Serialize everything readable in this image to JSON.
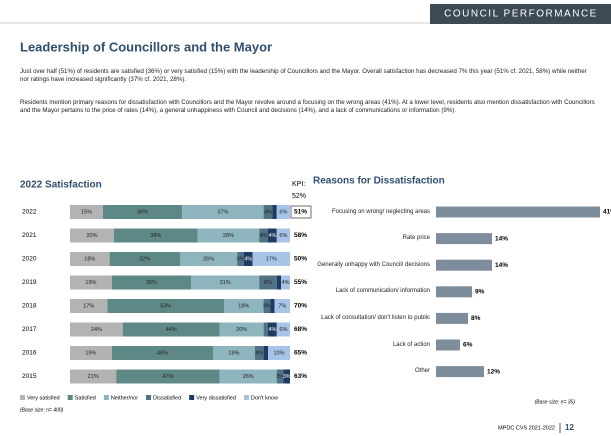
{
  "header": {
    "section": "COUNCIL PERFORMANCE",
    "title": "Leadership of Councillors and the Mayor"
  },
  "paragraphs": [
    "Just over half (51%) of residents are satisfied (36%) or very satisfied (15%) with the leadership of Councillors and the Mayor. Overall satisfaction has decreased 7% this year (51% cf. 2021, 58%) while neither nor ratings have increased significantly (37% cf. 2021, 28%).",
    "Residents mention primary reasons for dissatisfaction with Councillors and the Mayor revolve around a focusing on the wrong areas (41%). At a lower level, residents also mention dissatisfaction with Councillors and the Mayor pertains to the price of rates (14%), a general unhappiness with Council and decisions (14%), and a lack of communications or information (9%)."
  ],
  "chart_data": [
    {
      "type": "stacked-bar",
      "title": "2022 Satisfaction",
      "categories": [
        "2022",
        "2021",
        "2020",
        "2019",
        "2018",
        "2017",
        "2016",
        "2015"
      ],
      "series": [
        {
          "name": "Very satisfied",
          "color": "#b3b3b3",
          "values": [
            15,
            20,
            18,
            19,
            17,
            24,
            19,
            21
          ],
          "value_labels": [
            "15%",
            "20%",
            "18%",
            "19%",
            "17%",
            "24%",
            "19%",
            "21%"
          ]
        },
        {
          "name": "Satisfied",
          "color": "#5e8886",
          "values": [
            36,
            38,
            32,
            36,
            53,
            44,
            46,
            47
          ],
          "value_labels": [
            "36%",
            "38%",
            "32%",
            "36%",
            "53%",
            "44%",
            "46%",
            "47%"
          ]
        },
        {
          "name": "Neither/nor",
          "color": "#8eb4bd",
          "values": [
            37,
            28,
            26,
            31,
            18,
            20,
            19,
            26
          ],
          "value_labels": [
            "37%",
            "28%",
            "26%",
            "31%",
            "18%",
            "20%",
            "19%",
            "26%"
          ]
        },
        {
          "name": "Dissatisfied",
          "color": "#4f7284",
          "values": [
            4,
            4,
            3,
            8,
            3,
            2,
            4,
            3
          ],
          "value_labels": [
            "4%",
            "4%",
            "3%",
            "8%",
            "3%",
            null,
            "4%",
            "3%"
          ]
        },
        {
          "name": "Very dissatisfied",
          "color": "#1f3b63",
          "values": [
            2,
            4,
            4,
            2,
            2,
            4,
            2,
            3
          ],
          "value_labels": [
            null,
            "4%",
            "4%",
            null,
            null,
            "4%",
            null,
            "3%"
          ]
        },
        {
          "name": "Don't know",
          "color": "#a7c3e6",
          "values": [
            6,
            6,
            17,
            4,
            7,
            6,
            10,
            0
          ],
          "value_labels": [
            "6%",
            "6%",
            "17%",
            "4%",
            "7%",
            "6%",
            "10%",
            null
          ]
        }
      ],
      "xlim": [
        0,
        100
      ],
      "kpi_label": "KPI:",
      "kpi_target": "52%",
      "kpi": [
        51,
        58,
        50,
        55,
        70,
        68,
        65,
        63
      ],
      "kpi_labels": [
        "51%",
        "58%",
        "50%",
        "55%",
        "70%",
        "68%",
        "65%",
        "63%"
      ],
      "base_size": "(Base size: n= 400)"
    },
    {
      "type": "bar",
      "title": "Reasons for Dissatisfaction",
      "categories": [
        "Focusing on wrong/ neglecting areas",
        "Rate price",
        "Generally unhappy with Council/ decisions",
        "Lack of communication/ information",
        "Lack of consultation/ don't listen to public",
        "Lack of action",
        "Other"
      ],
      "values": [
        41,
        14,
        14,
        9,
        8,
        6,
        12
      ],
      "value_labels": [
        "41%",
        "14%",
        "14%",
        "9%",
        "8%",
        "6%",
        "12%"
      ],
      "color": "#7d8d9c",
      "xlim": [
        0,
        41
      ],
      "base_size": "(Base size: n= 35)"
    }
  ],
  "footer": {
    "report": "MPDC CVS 2021-2022",
    "page": "12"
  }
}
